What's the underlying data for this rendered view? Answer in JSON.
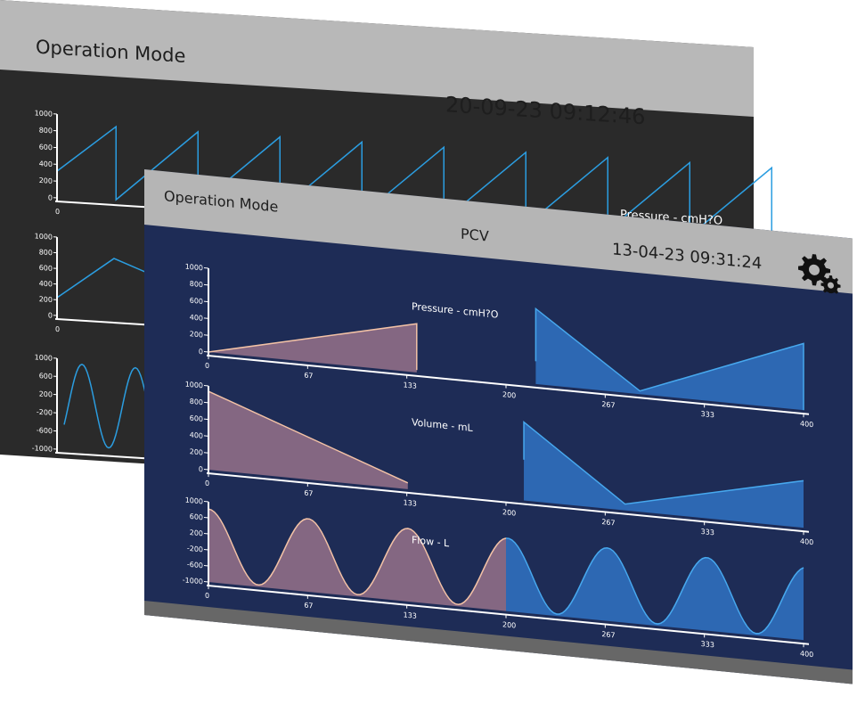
{
  "back_screen": {
    "title": "Operation Mode",
    "datetime": "20-09-23 09:12:46",
    "pressure_label": "Pressure - cmH?O",
    "charts": [
      {
        "name": "pressure",
        "y_ticks": [
          "1000",
          "800",
          "600",
          "400",
          "200",
          "0"
        ],
        "x_ticks": [
          "0"
        ]
      },
      {
        "name": "volume",
        "y_ticks": [
          "1000",
          "800",
          "600",
          "400",
          "200",
          "0"
        ],
        "x_ticks": [
          "0"
        ]
      },
      {
        "name": "flow",
        "y_ticks": [
          "1000",
          "600",
          "200",
          "-200",
          "-600",
          "-1000"
        ],
        "x_ticks": [
          "0"
        ]
      }
    ]
  },
  "front_screen": {
    "title": "Operation Mode",
    "mode": "PCV",
    "datetime": "13-04-23 09:31:24",
    "settings_icon": "gears-icon",
    "colors": {
      "bezel": "#1e2c56",
      "recorded_fill": "#8a6a85",
      "recorded_stroke": "#f3c2a6",
      "live_fill": "#2e6bb8",
      "live_stroke": "#47a8ee"
    },
    "x_ticks": [
      "0",
      "67",
      "133",
      "200",
      "267",
      "333",
      "400"
    ],
    "charts": [
      {
        "name": "pressure",
        "label": "Pressure - cmH?O",
        "y_ticks": [
          "1000",
          "800",
          "600",
          "400",
          "200",
          "0"
        ]
      },
      {
        "name": "volume",
        "label": "Volume - mL",
        "y_ticks": [
          "1000",
          "800",
          "600",
          "400",
          "200",
          "0"
        ]
      },
      {
        "name": "flow",
        "label": "Flow - L",
        "y_ticks": [
          "1000",
          "600",
          "200",
          "-200",
          "-600",
          "-1000"
        ]
      }
    ]
  },
  "chart_data": [
    {
      "type": "line",
      "title": "Pressure - cmH?O",
      "xlim": [
        0,
        400
      ],
      "ylim": [
        0,
        1000
      ],
      "series": [
        {
          "values_x": [
            0,
            140,
            140,
            220,
            220,
            290,
            290,
            400,
            400
          ],
          "values_y": [
            0,
            620,
            30,
            290,
            960,
            40,
            40,
            850,
            0
          ]
        }
      ]
    },
    {
      "type": "line",
      "title": "Volume - mL",
      "xlim": [
        0,
        400
      ],
      "ylim": [
        0,
        1000
      ],
      "series": [
        {
          "values_x": [
            0,
            134,
            212,
            212,
            280,
            400
          ],
          "values_y": [
            1000,
            80,
            520,
            1000,
            80,
            600
          ]
        }
      ]
    },
    {
      "type": "line",
      "title": "Flow - L",
      "xlim": [
        0,
        400
      ],
      "ylim": [
        -1000,
        1000
      ],
      "series": [
        {
          "amplitude": 950,
          "period": 67
        }
      ]
    }
  ]
}
